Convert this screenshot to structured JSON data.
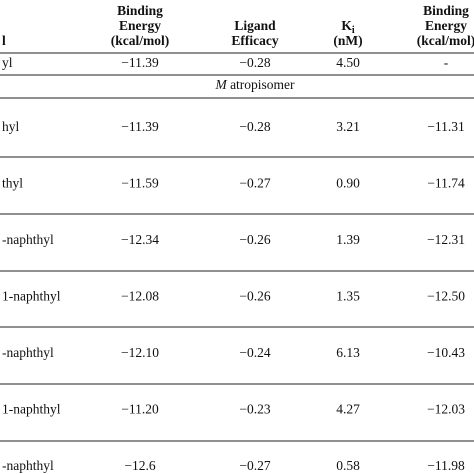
{
  "table": {
    "header": [
      [
        "l"
      ],
      [
        "Binding",
        "Energy",
        "(kcal/mol)"
      ],
      [
        "Ligand",
        "Efficacy"
      ],
      [
        {
          "text": "K",
          "sub": "i"
        },
        "(nM)"
      ],
      [
        "Binding",
        "Energy",
        "(kcal/mol)"
      ]
    ],
    "rows_before": [
      [
        "yl",
        "−11.39",
        "−0.28",
        "4.50",
        "-"
      ]
    ],
    "section": {
      "italic": "M",
      "text": " atropisomer"
    },
    "rows": [
      [
        "hyl",
        "−11.39",
        "−0.28",
        "3.21",
        "−11.31"
      ],
      [
        "thyl",
        "−11.59",
        "−0.27",
        "0.90",
        "−11.74"
      ],
      [
        "-naphthyl",
        "−12.34",
        "−0.26",
        "1.39",
        "−12.31"
      ],
      [
        "1-naphthyl",
        "−12.08",
        "−0.26",
        "1.35",
        "−12.50"
      ],
      [
        "-naphthyl",
        "−12.10",
        "−0.24",
        "6.13",
        "−10.43"
      ],
      [
        "1-naphthyl",
        "−11.20",
        "−0.23",
        "4.27",
        "−12.03"
      ],
      [
        "-naphthyl",
        "−12.6",
        "−0.27",
        "0.58",
        "−11.98"
      ]
    ]
  }
}
